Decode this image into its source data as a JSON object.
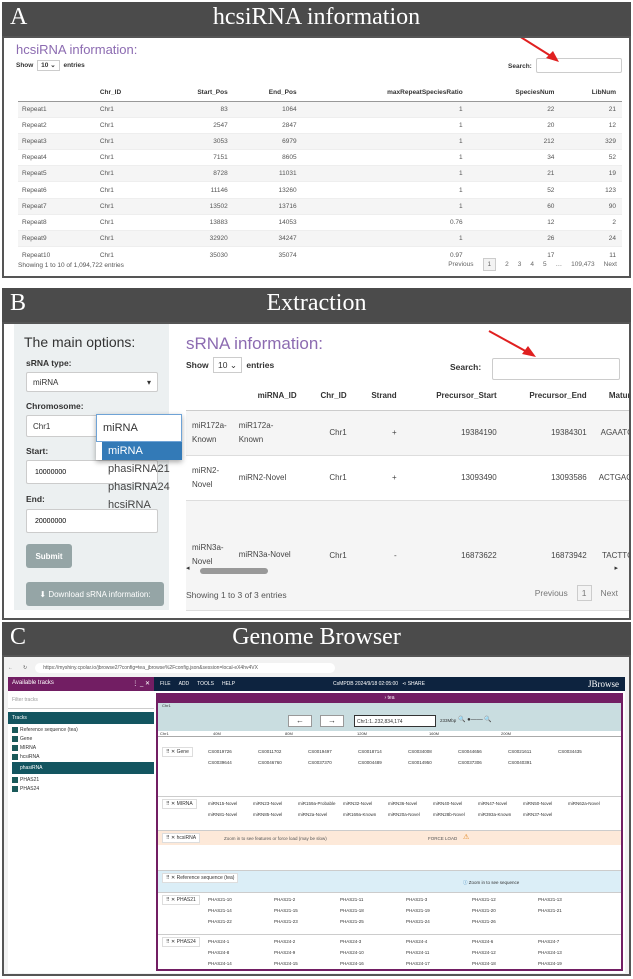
{
  "panelA": {
    "letter": "A",
    "heading": "hcsiRNA information",
    "title": "hcsiRNA information:",
    "show": "Show",
    "entries_value": "10",
    "entries": "entries",
    "search": "Search:",
    "search_value": "",
    "columns": [
      "",
      "Chr_ID",
      "Start_Pos",
      "End_Pos",
      "maxRepeatSpeciesRatio",
      "SpeciesNum",
      "LibNum"
    ],
    "rows": [
      [
        "Repeat1",
        "Chr1",
        "83",
        "1064",
        "1",
        "22",
        "21"
      ],
      [
        "Repeat2",
        "Chr1",
        "2547",
        "2847",
        "1",
        "20",
        "12"
      ],
      [
        "Repeat3",
        "Chr1",
        "3053",
        "6979",
        "1",
        "212",
        "329"
      ],
      [
        "Repeat4",
        "Chr1",
        "7151",
        "8605",
        "1",
        "34",
        "52"
      ],
      [
        "Repeat5",
        "Chr1",
        "8728",
        "11031",
        "1",
        "21",
        "19"
      ],
      [
        "Repeat6",
        "Chr1",
        "11146",
        "13260",
        "1",
        "52",
        "123"
      ],
      [
        "Repeat7",
        "Chr1",
        "13502",
        "13716",
        "1",
        "60",
        "90"
      ],
      [
        "Repeat8",
        "Chr1",
        "13883",
        "14053",
        "0.76",
        "12",
        "2"
      ],
      [
        "Repeat9",
        "Chr1",
        "32920",
        "34247",
        "1",
        "26",
        "24"
      ],
      [
        "Repeat10",
        "Chr1",
        "35030",
        "35074",
        "0.97",
        "17",
        "11"
      ]
    ],
    "info": "Showing 1 to 10 of 1,094,722 entries",
    "pager": [
      "Previous",
      "1",
      "2",
      "3",
      "4",
      "5",
      "…",
      "109,473",
      "Next"
    ]
  },
  "panelB": {
    "letter": "B",
    "heading": "Extraction",
    "sidebar_title": "The main options:",
    "srna_type_label": "sRNA type:",
    "srna_type_value": "miRNA",
    "chromosome_label": "Chromosome:",
    "chromosome_value": "Chr1",
    "start_label": "Start:",
    "start_value": "10000000",
    "end_label": "End:",
    "end_value": "20000000",
    "submit": "Submit",
    "download": "Download sRNA information:",
    "dropdown_search": "miRNA",
    "dropdown_options": [
      "miRNA",
      "phasiRNA21",
      "phasiRNA24",
      "hcsiRNA"
    ],
    "title": "sRNA information:",
    "show": "Show",
    "entries_value": "10",
    "entries": "entries",
    "search": "Search:",
    "search_value": "",
    "columns": [
      "",
      "miRNA_ID",
      "Chr_ID",
      "Strand",
      "Precursor_Start",
      "Precursor_End",
      "Mature_Seq"
    ],
    "rows": [
      [
        "miR172a-Known",
        "miR172a-Known",
        "Chr1",
        "+",
        "19384190",
        "19384301",
        "AGAATCTTGA"
      ],
      [
        "miRN2-Novel",
        "miRN2-Novel",
        "Chr1",
        "+",
        "13093490",
        "13093586",
        "ACTGACGTGT"
      ],
      [
        "miRN3a-Novel",
        "miRN3a-Novel",
        "Chr1",
        "-",
        "16873622",
        "16873942",
        "TACTTGACTT"
      ]
    ],
    "info": "Showing 1 to 3 of 3 entries",
    "pager": [
      "Previous",
      "1",
      "Next"
    ]
  },
  "panelC": {
    "letter": "C",
    "heading": "Genome Browser",
    "url": "https://myshiny.cpolar.io/jbrowse2/?config=tea_jbrowse%2Fconfig.json&session=local-eX4hv4VX",
    "left_header": "Available tracks",
    "filter_placeholder": "Filter tracks",
    "tracks_header": "Tracks",
    "track_items": [
      "Reference sequence (tea)",
      "Gene",
      "MIRNA",
      "hcsiRNA"
    ],
    "phasi_header": "phasiRNA",
    "phasi_items": [
      "PHAS21",
      "PHAS24"
    ],
    "menu": [
      "FILE",
      "ADD",
      "TOOLS",
      "HELP"
    ],
    "session": "CsMPDB 2024/9/18 02:05:00",
    "share": "SHARE",
    "brand": "JBrowse",
    "view_name": "tea",
    "chrom": "Chr1",
    "locus": "Chr1:1..232,834,174",
    "span": "233Mbp",
    "ruler": [
      "40M",
      "80M",
      "120M",
      "160M",
      "200M"
    ],
    "gene_track": "Gene",
    "gene_labels": [
      "CS0019726",
      "CS0011702",
      "CS0019497",
      "CS0018714",
      "CS0034008",
      "CS0044656",
      "CS0021611",
      "CS0034435",
      "CS0039644",
      "CS0046760",
      "CS0037370",
      "CS0004489",
      "CS0014950",
      "CS0037306",
      "CS0040391"
    ],
    "mirna_track": "MIRNA",
    "mirna_labels": [
      "miRN15-Novel",
      "miRN23-Novel",
      "miR159a-Probable",
      "miRN32-Novel",
      "miRN36-Novel",
      "miRN40-Novel",
      "miRN47-Novel",
      "miRN50-Novel",
      "miRN62a-Novel",
      "miRN81-Novel",
      "miRN85-Novel",
      "miRN2a-Novel",
      "miR169a-Known",
      "miRN20a-Novel",
      "miRN28b-Novel",
      "miR393a-Known",
      "miRN37-Novel"
    ],
    "hcsirna_track": "hcsiRNA",
    "force_msg": "Zoom in to see features or force load (may be slow)",
    "force_load": "FORCE LOAD",
    "ref_track": "Reference sequence (tea)",
    "ref_msg": "Zoom in to see sequence",
    "phas21_track": "PHAS21",
    "phas21_labels": [
      "PHAS21-10",
      "PHAS21-2",
      "PHAS21-11",
      "PHAS21-3",
      "PHAS21-12",
      "PHAS21-13",
      "PHAS21-14",
      "PHAS21-15",
      "PHAS21-18",
      "PHAS21-19",
      "PHAS21-20",
      "PHAS21-21",
      "PHAS21-22",
      "PHAS21-23",
      "PHAS21-25",
      "PHAS21-24",
      "PHAS21-26"
    ],
    "phas24_track": "PHAS24",
    "phas24_labels": [
      "PHAS24-1",
      "PHAS24-2",
      "PHAS24-3",
      "PHAS24-4",
      "PHAS24-6",
      "PHAS24-7",
      "PHAS24-8",
      "PHAS24-9",
      "PHAS24-10",
      "PHAS24-11",
      "PHAS24-12",
      "PHAS24-13",
      "PHAS24-14",
      "PHAS24-15",
      "PHAS24-16",
      "PHAS24-17",
      "PHAS24-18",
      "PHAS24-19"
    ]
  },
  "colors": {
    "header": "#4b4b4b",
    "title_purple": "#8c6bb1",
    "select_blue": "#337ab7",
    "jbrowse_purple": "#721e63",
    "jbrowse_navy": "#0d233f",
    "teal": "#135560",
    "arrow": "#e02020"
  }
}
